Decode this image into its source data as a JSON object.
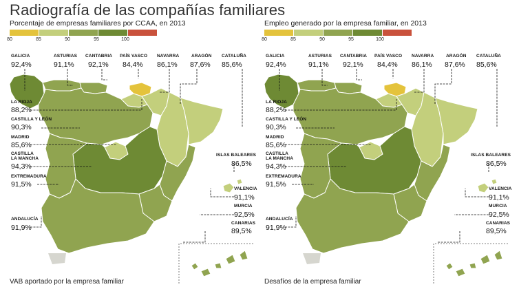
{
  "title": "Radiografía de las compañías familiares",
  "legend": {
    "ticks": [
      "80",
      "85",
      "90",
      "95",
      "100"
    ],
    "colors": [
      "#e4c33c",
      "#c3cf7c",
      "#90a450",
      "#6e8a34",
      "#c9523c"
    ]
  },
  "region_colors": {
    "dark": "#6e8a34",
    "mid": "#90a450",
    "light": "#c3cf7c",
    "yellow": "#e4c33c",
    "grey": "#d6d6cf"
  },
  "panels": [
    {
      "subtitle": "Porcentaje de empresas familiares por CCAA, en 2013",
      "caption": "VAB aportado por la empresa familiar",
      "regions": [
        {
          "name": "GALICIA",
          "value": "92,4%"
        },
        {
          "name": "ASTURIAS",
          "value": "91,1%"
        },
        {
          "name": "CANTABRIA",
          "value": "92,1%"
        },
        {
          "name": "PAÍS VASCO",
          "value": "84,4%"
        },
        {
          "name": "NAVARRA",
          "value": "86,1%"
        },
        {
          "name": "ARAGÓN",
          "value": "87,6%"
        },
        {
          "name": "CATALUÑA",
          "value": "85,6%"
        },
        {
          "name": "LA RIOJA",
          "value": "88,2%"
        },
        {
          "name": "CASTILLA Y LEÓN",
          "value": "90,3%"
        },
        {
          "name": "MADRID",
          "value": "85,6%"
        },
        {
          "name": "CASTILLA\nLA MANCHA",
          "value": "94,3%"
        },
        {
          "name": "EXTREMADURA",
          "value": "91,5%"
        },
        {
          "name": "ISLAS BALEARES",
          "value": "86,5%"
        },
        {
          "name": "VALENCIA",
          "value": "91,1%"
        },
        {
          "name": "MURCIA",
          "value": "92,5%"
        },
        {
          "name": "ANDALUCÍA",
          "value": "91,9%"
        },
        {
          "name": "CANARIAS",
          "value": "89,5%"
        }
      ]
    },
    {
      "subtitle": "Empleo generado por la empresa familiar, en 2013",
      "caption": "Desafíos de la empresa familiar",
      "regions": [
        {
          "name": "GALICIA",
          "value": "92,4%"
        },
        {
          "name": "ASTURIAS",
          "value": "91,1%"
        },
        {
          "name": "CANTABRIA",
          "value": "92,1%"
        },
        {
          "name": "PAÍS VASCO",
          "value": "84,4%"
        },
        {
          "name": "NAVARRA",
          "value": "86,1%"
        },
        {
          "name": "ARAGÓN",
          "value": "87,6%"
        },
        {
          "name": "CATALUÑA",
          "value": "85,6%"
        },
        {
          "name": "LA RIOJA",
          "value": "88,2%"
        },
        {
          "name": "CASTILLA Y LEÓN",
          "value": "90,3%"
        },
        {
          "name": "MADRID",
          "value": "85,6%"
        },
        {
          "name": "CASTILLA\nLA MANCHA",
          "value": "94,3%"
        },
        {
          "name": "EXTREMADURA",
          "value": "91,5%"
        },
        {
          "name": "ISLAS BALEARES",
          "value": "86,5%"
        },
        {
          "name": "VALENCIA",
          "value": "91,1%"
        },
        {
          "name": "MURCIA",
          "value": "92,5%"
        },
        {
          "name": "ANDALUCÍA",
          "value": "91,9%"
        },
        {
          "name": "CANARIAS",
          "value": "89,5%"
        }
      ]
    }
  ]
}
